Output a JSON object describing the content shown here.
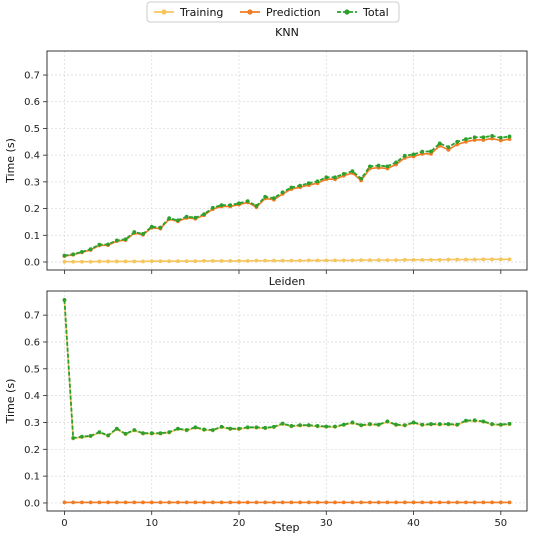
{
  "chart_data": {
    "type": "line",
    "legend": {
      "placement": "top-center",
      "entries": [
        {
          "name": "Training",
          "color": "#f5c55e",
          "style": "solid",
          "marker": "circle"
        },
        {
          "name": "Prediction",
          "color": "#f07c24",
          "style": "solid",
          "marker": "circle"
        },
        {
          "name": "Total",
          "color": "#2ca02c",
          "style": "dashed",
          "marker": "circle"
        }
      ]
    },
    "xlabel": "Step",
    "xlim": [
      -2,
      53
    ],
    "xticks": [
      0,
      10,
      20,
      30,
      40,
      50
    ],
    "grid": true,
    "panels": [
      {
        "title": "KNN",
        "ylabel": "Time (s)",
        "ylim": [
          -0.03,
          0.79
        ],
        "yticks": [
          0.0,
          0.1,
          0.2,
          0.3,
          0.4,
          0.5,
          0.6,
          0.7
        ],
        "series": [
          {
            "name": "Training",
            "values": [
              0.001,
              0.001,
              0.001,
              0.001,
              0.002,
              0.002,
              0.002,
              0.002,
              0.002,
              0.002,
              0.003,
              0.003,
              0.003,
              0.003,
              0.003,
              0.003,
              0.004,
              0.004,
              0.004,
              0.004,
              0.004,
              0.004,
              0.005,
              0.005,
              0.005,
              0.005,
              0.005,
              0.005,
              0.006,
              0.006,
              0.006,
              0.006,
              0.006,
              0.006,
              0.007,
              0.007,
              0.007,
              0.007,
              0.007,
              0.008,
              0.008,
              0.008,
              0.008,
              0.008,
              0.009,
              0.009,
              0.009,
              0.009,
              0.01,
              0.01,
              0.01,
              0.01
            ]
          },
          {
            "name": "Prediction",
            "values": [
              0.022,
              0.027,
              0.036,
              0.045,
              0.062,
              0.063,
              0.078,
              0.082,
              0.108,
              0.102,
              0.128,
              0.125,
              0.16,
              0.152,
              0.165,
              0.162,
              0.175,
              0.198,
              0.208,
              0.208,
              0.215,
              0.223,
              0.205,
              0.238,
              0.233,
              0.255,
              0.273,
              0.28,
              0.288,
              0.295,
              0.31,
              0.31,
              0.323,
              0.333,
              0.305,
              0.35,
              0.353,
              0.35,
              0.365,
              0.39,
              0.395,
              0.405,
              0.405,
              0.435,
              0.42,
              0.44,
              0.45,
              0.457,
              0.457,
              0.462,
              0.455,
              0.46
            ]
          },
          {
            "name": "Total",
            "values": [
              0.024,
              0.029,
              0.038,
              0.048,
              0.065,
              0.066,
              0.081,
              0.085,
              0.112,
              0.105,
              0.132,
              0.129,
              0.164,
              0.156,
              0.17,
              0.166,
              0.179,
              0.203,
              0.213,
              0.213,
              0.22,
              0.228,
              0.21,
              0.244,
              0.239,
              0.261,
              0.279,
              0.286,
              0.295,
              0.302,
              0.317,
              0.317,
              0.33,
              0.34,
              0.312,
              0.358,
              0.361,
              0.358,
              0.373,
              0.398,
              0.403,
              0.413,
              0.414,
              0.444,
              0.43,
              0.45,
              0.46,
              0.467,
              0.467,
              0.472,
              0.465,
              0.47
            ]
          }
        ]
      },
      {
        "title": "Leiden",
        "ylabel": "Time (s)",
        "ylim": [
          -0.03,
          0.79
        ],
        "yticks": [
          0.0,
          0.1,
          0.2,
          0.3,
          0.4,
          0.5,
          0.6,
          0.7
        ],
        "series": [
          {
            "name": "Training",
            "values": [
              0.755,
              0.24,
              0.245,
              0.248,
              0.262,
              0.25,
              0.275,
              0.256,
              0.27,
              0.258,
              0.258,
              0.258,
              0.262,
              0.275,
              0.27,
              0.28,
              0.272,
              0.27,
              0.282,
              0.275,
              0.275,
              0.28,
              0.28,
              0.278,
              0.282,
              0.294,
              0.285,
              0.288,
              0.288,
              0.285,
              0.283,
              0.283,
              0.29,
              0.298,
              0.288,
              0.292,
              0.29,
              0.302,
              0.29,
              0.288,
              0.298,
              0.29,
              0.292,
              0.292,
              0.292,
              0.29,
              0.305,
              0.306,
              0.302,
              0.292,
              0.29,
              0.293
            ]
          },
          {
            "name": "Prediction",
            "values": [
              0.002,
              0.002,
              0.002,
              0.002,
              0.002,
              0.002,
              0.002,
              0.002,
              0.002,
              0.002,
              0.002,
              0.002,
              0.002,
              0.002,
              0.002,
              0.002,
              0.002,
              0.002,
              0.002,
              0.002,
              0.002,
              0.002,
              0.002,
              0.002,
              0.002,
              0.002,
              0.002,
              0.002,
              0.002,
              0.002,
              0.002,
              0.002,
              0.002,
              0.002,
              0.002,
              0.002,
              0.002,
              0.002,
              0.002,
              0.002,
              0.002,
              0.002,
              0.002,
              0.002,
              0.002,
              0.002,
              0.002,
              0.002,
              0.002,
              0.002,
              0.002,
              0.002
            ]
          },
          {
            "name": "Total",
            "values": [
              0.757,
              0.242,
              0.247,
              0.25,
              0.264,
              0.252,
              0.277,
              0.258,
              0.272,
              0.26,
              0.26,
              0.26,
              0.264,
              0.277,
              0.272,
              0.282,
              0.274,
              0.272,
              0.284,
              0.277,
              0.277,
              0.282,
              0.282,
              0.28,
              0.284,
              0.296,
              0.287,
              0.29,
              0.29,
              0.287,
              0.285,
              0.285,
              0.292,
              0.3,
              0.29,
              0.294,
              0.292,
              0.304,
              0.292,
              0.29,
              0.3,
              0.292,
              0.294,
              0.294,
              0.294,
              0.292,
              0.307,
              0.308,
              0.304,
              0.294,
              0.292,
              0.295
            ]
          }
        ]
      }
    ]
  }
}
